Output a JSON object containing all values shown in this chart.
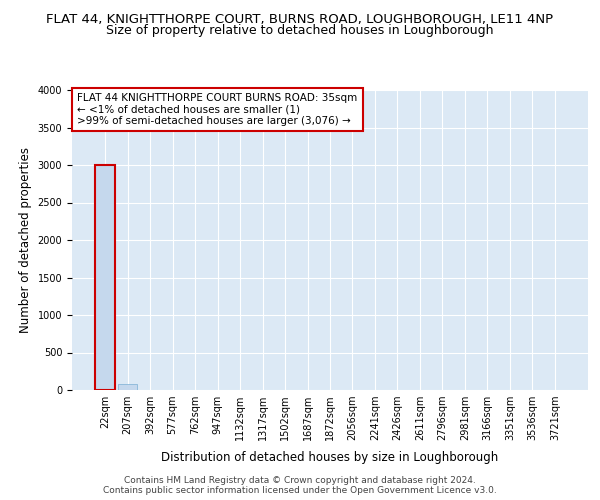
{
  "title": "FLAT 44, KNIGHTTHORPE COURT, BURNS ROAD, LOUGHBOROUGH, LE11 4NP",
  "subtitle": "Size of property relative to detached houses in Loughborough",
  "xlabel": "Distribution of detached houses by size in Loughborough",
  "ylabel": "Number of detached properties",
  "footer_line1": "Contains HM Land Registry data © Crown copyright and database right 2024.",
  "footer_line2": "Contains public sector information licensed under the Open Government Licence v3.0.",
  "annotation_line1": "FLAT 44 KNIGHTTHORPE COURT BURNS ROAD: 35sqm",
  "annotation_line2": "← <1% of detached houses are smaller (1)",
  "annotation_line3": ">99% of semi-detached houses are larger (3,076) →",
  "categories": [
    "22sqm",
    "207sqm",
    "392sqm",
    "577sqm",
    "762sqm",
    "947sqm",
    "1132sqm",
    "1317sqm",
    "1502sqm",
    "1687sqm",
    "1872sqm",
    "2056sqm",
    "2241sqm",
    "2426sqm",
    "2611sqm",
    "2796sqm",
    "2981sqm",
    "3166sqm",
    "3351sqm",
    "3536sqm",
    "3721sqm"
  ],
  "values": [
    3000,
    75,
    3,
    1,
    0,
    0,
    0,
    0,
    0,
    0,
    0,
    0,
    0,
    0,
    0,
    0,
    0,
    0,
    0,
    0,
    0
  ],
  "bar_color": "#c5d8ed",
  "bar_edge_color": "#7aafd4",
  "highlight_bar_index": 0,
  "highlight_edge_color": "#cc0000",
  "annotation_box_edge_color": "#cc0000",
  "annotation_box_face_color": "#ffffff",
  "background_color": "#dce9f5",
  "ylim": [
    0,
    4000
  ],
  "yticks": [
    0,
    500,
    1000,
    1500,
    2000,
    2500,
    3000,
    3500,
    4000
  ],
  "grid_color": "#ffffff",
  "title_fontsize": 9.5,
  "subtitle_fontsize": 9,
  "axis_label_fontsize": 8.5,
  "tick_fontsize": 7,
  "annotation_fontsize": 7.5,
  "footer_fontsize": 6.5
}
